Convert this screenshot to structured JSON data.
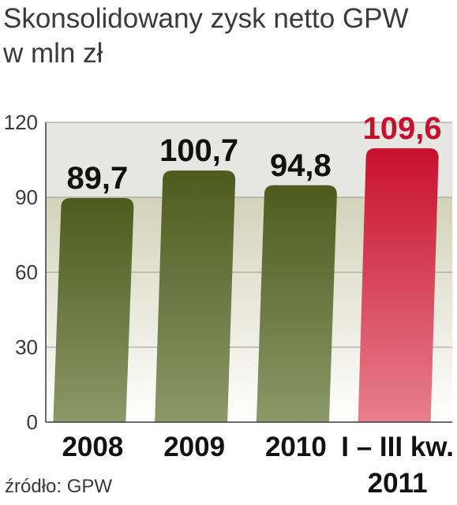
{
  "title_line1": "Skonsolidowany zysk netto GPW",
  "title_line2": "w mln zł",
  "source": "źródło: GPW",
  "colors": {
    "bar_dark_top": "#4f5a1e",
    "bar_dark_bottom": "#8b9868",
    "bar_highlight_top": "#c8102e",
    "bar_highlight_bottom": "#e7808c",
    "bg_upper": "#e6e6e2",
    "bg_lower": "#d2d3b9",
    "label_dark": "#111111",
    "label_highlight": "#c8102e"
  },
  "chart_data": {
    "type": "bar",
    "categories": [
      "2008",
      "2009",
      "2010",
      "I – III kw. 2011"
    ],
    "category_lines": [
      [
        "2008"
      ],
      [
        "2009"
      ],
      [
        "2010"
      ],
      [
        "I – III kw.",
        "2011"
      ]
    ],
    "values": [
      89.7,
      100.7,
      94.8,
      109.6
    ],
    "value_labels": [
      "89,7",
      "100,7",
      "94,8",
      "109,6"
    ],
    "highlight": [
      false,
      false,
      false,
      true
    ],
    "ylim": [
      0,
      120
    ],
    "yticks": [
      0,
      30,
      60,
      90,
      120
    ],
    "title": "Skonsolidowany zysk netto GPW",
    "ylabel": "w mln zł",
    "xlabel": "",
    "grid": true
  }
}
